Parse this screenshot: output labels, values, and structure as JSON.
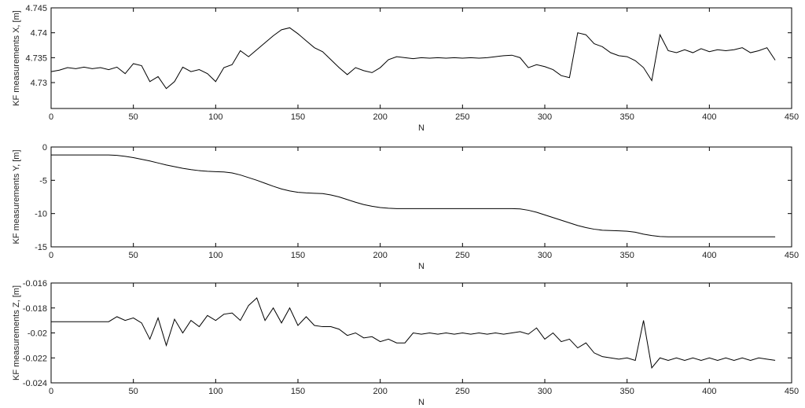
{
  "chart_data": [
    {
      "type": "line",
      "xlabel": "N",
      "ylabel": "KF measurements X, [m]",
      "color": "#000000",
      "xlim": [
        0,
        450
      ],
      "xticks": [
        0,
        50,
        100,
        150,
        200,
        250,
        300,
        350,
        400,
        450
      ],
      "ylim": [
        4.7248,
        4.745
      ],
      "yticks": [
        4.73,
        4.735,
        4.74,
        4.745
      ],
      "x": [
        0,
        5,
        10,
        15,
        20,
        25,
        30,
        35,
        40,
        45,
        50,
        55,
        60,
        65,
        70,
        75,
        80,
        85,
        90,
        95,
        100,
        105,
        110,
        115,
        120,
        125,
        130,
        135,
        140,
        145,
        150,
        155,
        160,
        165,
        170,
        175,
        180,
        185,
        190,
        195,
        200,
        205,
        210,
        215,
        220,
        225,
        230,
        235,
        240,
        245,
        250,
        255,
        260,
        265,
        270,
        275,
        280,
        285,
        290,
        295,
        300,
        305,
        310,
        315,
        320,
        325,
        330,
        335,
        340,
        345,
        350,
        355,
        360,
        365,
        370,
        375,
        380,
        385,
        390,
        395,
        400,
        405,
        410,
        415,
        420,
        425,
        430,
        435,
        440
      ],
      "values": [
        4.7322,
        4.7325,
        4.733,
        4.7328,
        4.7331,
        4.7328,
        4.733,
        4.7326,
        4.7331,
        4.7318,
        4.7338,
        4.7334,
        4.7302,
        4.7312,
        4.7288,
        4.7302,
        4.7331,
        4.7322,
        4.7326,
        4.7318,
        4.7302,
        4.733,
        4.7336,
        4.7364,
        4.7352,
        4.7366,
        4.738,
        4.7394,
        4.7406,
        4.741,
        4.7398,
        4.7384,
        4.737,
        4.7362,
        4.7346,
        4.733,
        4.7316,
        4.733,
        4.7324,
        4.732,
        4.733,
        4.7346,
        4.7352,
        4.735,
        4.7348,
        4.735,
        4.7349,
        4.735,
        4.7349,
        4.735,
        4.7349,
        4.735,
        4.7349,
        4.735,
        4.7352,
        4.7354,
        4.7355,
        4.735,
        4.733,
        4.7336,
        4.7332,
        4.7326,
        4.7314,
        4.731,
        4.74,
        4.7396,
        4.7378,
        4.7372,
        4.736,
        4.7354,
        4.7352,
        4.7344,
        4.733,
        4.7304,
        4.7396,
        4.7364,
        4.736,
        4.7366,
        4.736,
        4.7368,
        4.7362,
        4.7366,
        4.7364,
        4.7366,
        4.737,
        4.736,
        4.7364,
        4.737,
        4.7345
      ]
    },
    {
      "type": "line",
      "xlabel": "N",
      "ylabel": "KF measurements Y, [m]",
      "color": "#000000",
      "xlim": [
        0,
        450
      ],
      "xticks": [
        0,
        50,
        100,
        150,
        200,
        250,
        300,
        350,
        400,
        450
      ],
      "ylim": [
        -15,
        0
      ],
      "yticks": [
        -15,
        -10,
        -5,
        0
      ],
      "x": [
        0,
        5,
        10,
        15,
        20,
        25,
        30,
        35,
        40,
        45,
        50,
        55,
        60,
        65,
        70,
        75,
        80,
        85,
        90,
        95,
        100,
        105,
        110,
        115,
        120,
        125,
        130,
        135,
        140,
        145,
        150,
        155,
        160,
        165,
        170,
        175,
        180,
        185,
        190,
        195,
        200,
        205,
        210,
        215,
        220,
        225,
        230,
        235,
        240,
        245,
        250,
        255,
        260,
        265,
        270,
        275,
        280,
        285,
        290,
        295,
        300,
        305,
        310,
        315,
        320,
        325,
        330,
        335,
        340,
        345,
        350,
        355,
        360,
        365,
        370,
        375,
        380,
        385,
        390,
        395,
        400,
        405,
        410,
        415,
        420,
        425,
        430,
        435,
        440
      ],
      "values": [
        -1.2,
        -1.2,
        -1.2,
        -1.2,
        -1.2,
        -1.2,
        -1.2,
        -1.2,
        -1.25,
        -1.4,
        -1.6,
        -1.85,
        -2.1,
        -2.4,
        -2.7,
        -2.95,
        -3.2,
        -3.4,
        -3.55,
        -3.65,
        -3.7,
        -3.75,
        -3.9,
        -4.2,
        -4.6,
        -5.0,
        -5.45,
        -5.9,
        -6.3,
        -6.6,
        -6.8,
        -6.9,
        -6.95,
        -7.0,
        -7.2,
        -7.5,
        -7.9,
        -8.3,
        -8.65,
        -8.9,
        -9.1,
        -9.2,
        -9.25,
        -9.25,
        -9.25,
        -9.25,
        -9.25,
        -9.25,
        -9.25,
        -9.25,
        -9.25,
        -9.25,
        -9.25,
        -9.25,
        -9.25,
        -9.25,
        -9.25,
        -9.3,
        -9.5,
        -9.8,
        -10.2,
        -10.6,
        -11.0,
        -11.4,
        -11.8,
        -12.1,
        -12.35,
        -12.5,
        -12.55,
        -12.6,
        -12.65,
        -12.8,
        -13.1,
        -13.3,
        -13.45,
        -13.5,
        -13.5,
        -13.5,
        -13.5,
        -13.5,
        -13.5,
        -13.5,
        -13.5,
        -13.5,
        -13.5,
        -13.5,
        -13.5,
        -13.5,
        -13.5
      ]
    },
    {
      "type": "line",
      "xlabel": "N",
      "ylabel": "KF measurements Z, [m]",
      "color": "#000000",
      "xlim": [
        0,
        450
      ],
      "xticks": [
        0,
        50,
        100,
        150,
        200,
        250,
        300,
        350,
        400,
        450
      ],
      "ylim": [
        -0.024,
        -0.016
      ],
      "yticks": [
        -0.024,
        -0.022,
        -0.02,
        -0.018,
        -0.016
      ],
      "x": [
        0,
        5,
        10,
        15,
        20,
        25,
        30,
        35,
        40,
        45,
        50,
        55,
        60,
        65,
        70,
        75,
        80,
        85,
        90,
        95,
        100,
        105,
        110,
        115,
        120,
        125,
        130,
        135,
        140,
        145,
        150,
        155,
        160,
        165,
        170,
        175,
        180,
        185,
        190,
        195,
        200,
        205,
        210,
        215,
        220,
        225,
        230,
        235,
        240,
        245,
        250,
        255,
        260,
        265,
        270,
        275,
        280,
        285,
        290,
        295,
        300,
        305,
        310,
        315,
        320,
        325,
        330,
        335,
        340,
        345,
        350,
        355,
        360,
        365,
        370,
        375,
        380,
        385,
        390,
        395,
        400,
        405,
        410,
        415,
        420,
        425,
        430,
        435,
        440
      ],
      "values": [
        -0.0191,
        -0.0191,
        -0.0191,
        -0.0191,
        -0.0191,
        -0.0191,
        -0.0191,
        -0.0191,
        -0.0187,
        -0.019,
        -0.0188,
        -0.0192,
        -0.0205,
        -0.0188,
        -0.021,
        -0.0189,
        -0.02,
        -0.019,
        -0.0195,
        -0.0186,
        -0.019,
        -0.0185,
        -0.0184,
        -0.019,
        -0.0178,
        -0.0172,
        -0.019,
        -0.018,
        -0.0192,
        -0.018,
        -0.0194,
        -0.0187,
        -0.0194,
        -0.0195,
        -0.0195,
        -0.0197,
        -0.0202,
        -0.02,
        -0.0204,
        -0.0203,
        -0.0207,
        -0.0205,
        -0.0208,
        -0.0208,
        -0.02,
        -0.0201,
        -0.02,
        -0.0201,
        -0.02,
        -0.0201,
        -0.02,
        -0.0201,
        -0.02,
        -0.0201,
        -0.02,
        -0.0201,
        -0.02,
        -0.0199,
        -0.0201,
        -0.0196,
        -0.0205,
        -0.02,
        -0.0207,
        -0.0205,
        -0.0212,
        -0.0208,
        -0.0216,
        -0.0219,
        -0.022,
        -0.0221,
        -0.022,
        -0.0222,
        -0.019,
        -0.0228,
        -0.022,
        -0.0222,
        -0.022,
        -0.0222,
        -0.022,
        -0.0222,
        -0.022,
        -0.0222,
        -0.022,
        -0.0222,
        -0.022,
        -0.0222,
        -0.022,
        -0.0221,
        -0.0222
      ]
    }
  ]
}
